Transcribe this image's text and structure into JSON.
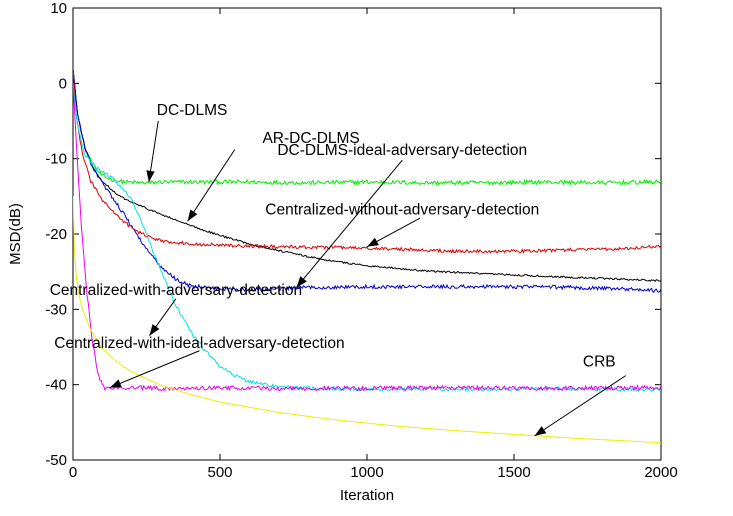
{
  "chart_data": {
    "type": "line",
    "title": "",
    "xlabel": "Iteration",
    "ylabel": "MSD(dB)",
    "xlim": [
      0,
      2000
    ],
    "ylim": [
      -50,
      10
    ],
    "xticks": [
      0,
      500,
      1000,
      1500,
      2000
    ],
    "yticks": [
      10,
      0,
      -10,
      -20,
      -30,
      -40,
      -50
    ],
    "grid": false,
    "legend": "none (inline arrow annotations)",
    "series": [
      {
        "name": "DC-DLMS",
        "color": "#00ee00",
        "noise": 0.28,
        "x": [
          0,
          15,
          40,
          70,
          100,
          140,
          180,
          220,
          260,
          300,
          400,
          600,
          800,
          1000,
          1200,
          1400,
          1600,
          1800,
          2000
        ],
        "y": [
          2,
          -4,
          -8.5,
          -11,
          -12.3,
          -12.9,
          -13.1,
          -13.2,
          -13.2,
          -13.1,
          -13.1,
          -13.1,
          -13.2,
          -13.1,
          -13.2,
          -13.2,
          -13.1,
          -13.2,
          -13.1
        ]
      },
      {
        "name": "AR-DC-DLMS",
        "color": "#000000",
        "noise": 0.12,
        "x": [
          0,
          15,
          40,
          70,
          100,
          150,
          200,
          300,
          400,
          500,
          600,
          700,
          800,
          900,
          1000,
          1200,
          1400,
          1600,
          1800,
          2000
        ],
        "y": [
          2,
          -4,
          -8.5,
          -11.5,
          -13,
          -14.8,
          -15.8,
          -17.4,
          -18.9,
          -20.2,
          -21.3,
          -22.2,
          -23.0,
          -23.7,
          -24.2,
          -24.9,
          -25.3,
          -25.6,
          -25.9,
          -26.2
        ]
      },
      {
        "name": "DC-DLMS-ideal-adversary-detection",
        "color": "#0000cc",
        "noise": 0.25,
        "x": [
          0,
          15,
          40,
          70,
          100,
          150,
          200,
          250,
          300,
          350,
          400,
          500,
          600,
          700,
          800,
          1000,
          1200,
          1400,
          1600,
          1800,
          2000
        ],
        "y": [
          2,
          -4,
          -8.5,
          -11.5,
          -13.2,
          -16,
          -19,
          -22,
          -24.5,
          -26,
          -26.9,
          -27.3,
          -27.4,
          -27.3,
          -27.1,
          -27.0,
          -27.0,
          -27.0,
          -27.0,
          -27.2,
          -27.5
        ]
      },
      {
        "name": "Centralized-without-adversary-detection",
        "color": "#dd0000",
        "noise": 0.22,
        "x": [
          0,
          10,
          30,
          60,
          100,
          150,
          200,
          250,
          300,
          400,
          500,
          700,
          900,
          1100,
          1300,
          1500,
          1700,
          1900,
          2000
        ],
        "y": [
          2,
          -4,
          -9,
          -13,
          -15.5,
          -17.6,
          -19.2,
          -20.3,
          -20.9,
          -21.3,
          -21.5,
          -21.7,
          -21.8,
          -22.0,
          -22.3,
          -22.3,
          -22.1,
          -21.9,
          -21.6
        ]
      },
      {
        "name": "Centralized-with-adversary-detection",
        "color": "#00e5e5",
        "noise": 0.25,
        "x": [
          0,
          15,
          40,
          80,
          120,
          160,
          200,
          250,
          300,
          350,
          400,
          450,
          500,
          550,
          600,
          700,
          800,
          1000,
          1200,
          1400,
          1600,
          1800,
          2000
        ],
        "y": [
          0,
          -5.5,
          -9.5,
          -11.3,
          -12.2,
          -13.5,
          -15.5,
          -20,
          -25,
          -29.5,
          -33,
          -35.5,
          -37.5,
          -38.8,
          -39.6,
          -40.3,
          -40.5,
          -40.6,
          -40.6,
          -40.6,
          -40.5,
          -40.6,
          -40.6
        ]
      },
      {
        "name": "Centralized-with-ideal-adversary-detection",
        "color": "#ee00ee",
        "noise": 0.28,
        "x": [
          0,
          10,
          25,
          45,
          65,
          85,
          100,
          110,
          125,
          150,
          200,
          300,
          500,
          700,
          1000,
          1300,
          1600,
          2000
        ],
        "y": [
          0,
          -7,
          -17,
          -27,
          -34,
          -38.5,
          -40.2,
          -40.5,
          -40.5,
          -40.4,
          -40.4,
          -40.5,
          -40.4,
          -40.5,
          -40.5,
          -40.4,
          -40.5,
          -40.4
        ]
      },
      {
        "name": "CRB",
        "color": "#eeee00",
        "noise": 0,
        "x": [
          0,
          5,
          15,
          30,
          60,
          100,
          150,
          200,
          300,
          400,
          500,
          700,
          900,
          1100,
          1300,
          1500,
          1700,
          1900,
          2000
        ],
        "y": [
          -15,
          -23,
          -27,
          -29.8,
          -32.7,
          -35.2,
          -37,
          -38.3,
          -40.1,
          -41.3,
          -42.3,
          -43.7,
          -44.7,
          -45.5,
          -46.1,
          -46.6,
          -47.1,
          -47.5,
          -47.7
        ]
      }
    ],
    "annotations": [
      {
        "text": "DC-DLMS",
        "tail": [
          290,
          -5
        ],
        "head": [
          258,
          -13.1
        ],
        "tx": 405,
        "ty": -4.2
      },
      {
        "text": "AR-DC-DLMS",
        "tail": [
          550,
          -8.8
        ],
        "head": [
          390,
          -18.3
        ],
        "tx": 810,
        "ty": -7.9
      },
      {
        "text": "DC-DLMS-ideal-adversary-detection",
        "tail": [
          1120,
          -10.2
        ],
        "head": [
          760,
          -27.1
        ],
        "tx": 1120,
        "ty": -9.5
      },
      {
        "text": "Centralized-without-adversary-detection",
        "tail": [
          1180,
          -17.9
        ],
        "head": [
          1000,
          -21.7
        ],
        "tx": 1120,
        "ty": -17.4
      },
      {
        "text": "Centralized-with-adversary-detection",
        "tail": [
          350,
          -28.6
        ],
        "head": [
          260,
          -33.5
        ],
        "tx": 350,
        "ty": -28.1
      },
      {
        "text": "Centralized-with-ideal-adversary-detection",
        "tail": [
          430,
          -35.5
        ],
        "head": [
          125,
          -40.4
        ],
        "tx": 430,
        "ty": -35.1
      },
      {
        "text": "CRB",
        "tail": [
          1880,
          -38.8
        ],
        "head": [
          1570,
          -46.8
        ],
        "tx": 1790,
        "ty": -37.6
      }
    ]
  }
}
